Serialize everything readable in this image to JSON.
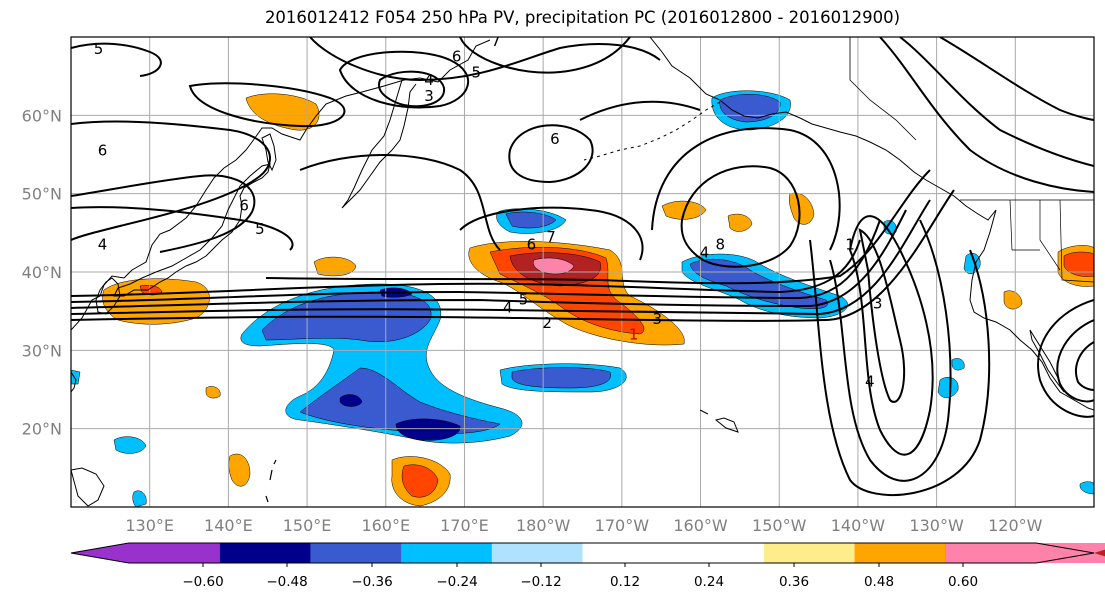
{
  "title": "2016012412 F054 250 hPa PV, precipitation PC (2016012800 - 2016012900)",
  "map": {
    "lon_range": [
      120,
      250
    ],
    "lat_range": [
      10,
      70
    ],
    "lat_ticks": [
      {
        "lat": 60,
        "label": "60°N"
      },
      {
        "lat": 50,
        "label": "50°N"
      },
      {
        "lat": 40,
        "label": "40°N"
      },
      {
        "lat": 30,
        "label": "30°N"
      },
      {
        "lat": 20,
        "label": "20°N"
      }
    ],
    "lon_ticks": [
      {
        "lon": 130,
        "label": "130°E"
      },
      {
        "lon": 140,
        "label": "140°E"
      },
      {
        "lon": 150,
        "label": "150°E"
      },
      {
        "lon": 160,
        "label": "160°E"
      },
      {
        "lon": 170,
        "label": "170°E"
      },
      {
        "lon": 180,
        "label": "180°W"
      },
      {
        "lon": 190,
        "label": "170°W"
      },
      {
        "lon": 200,
        "label": "160°W"
      },
      {
        "lon": 210,
        "label": "150°W"
      },
      {
        "lon": 220,
        "label": "140°W"
      },
      {
        "lon": 230,
        "label": "130°W"
      },
      {
        "lon": 240,
        "label": "120°W"
      }
    ],
    "grid": true,
    "pv_contour_labels": [
      {
        "text": "5",
        "lon": 123.5,
        "lat": 68.5
      },
      {
        "text": "6",
        "lon": 169,
        "lat": 67.5
      },
      {
        "text": "5",
        "lon": 171.5,
        "lat": 65.5
      },
      {
        "text": "7",
        "lon": 174,
        "lat": 69.5
      },
      {
        "text": "4",
        "lon": 165.5,
        "lat": 64.5
      },
      {
        "text": "3",
        "lon": 165.5,
        "lat": 62.5
      },
      {
        "text": "6",
        "lon": 124,
        "lat": 55.5
      },
      {
        "text": "6",
        "lon": 181.5,
        "lat": 57
      },
      {
        "text": "6",
        "lon": 142,
        "lat": 48.5
      },
      {
        "text": "5",
        "lon": 144,
        "lat": 45.5
      },
      {
        "text": "4",
        "lon": 124,
        "lat": 43.5
      },
      {
        "text": "6",
        "lon": 178.5,
        "lat": 43.5
      },
      {
        "text": "7",
        "lon": 181,
        "lat": 44.5
      },
      {
        "text": "4",
        "lon": 200.5,
        "lat": 42.5
      },
      {
        "text": "8",
        "lon": 202.5,
        "lat": 43.5
      },
      {
        "text": "1",
        "lon": 219,
        "lat": 43.5
      },
      {
        "text": "5",
        "lon": 177.5,
        "lat": 36.5
      },
      {
        "text": "4",
        "lon": 175.5,
        "lat": 35.5
      },
      {
        "text": "2",
        "lon": 180.5,
        "lat": 33.5
      },
      {
        "text": "3",
        "lon": 194.5,
        "lat": 34
      },
      {
        "text": "1",
        "lon": 191.5,
        "lat": 32
      },
      {
        "text": "3",
        "lon": 222.5,
        "lat": 36
      },
      {
        "text": "4",
        "lon": 221.5,
        "lat": 26
      }
    ],
    "shading_colors": {
      "neg_ext": "#9932cc",
      "neg60": "#00008b",
      "neg48": "#3a5bd0",
      "neg36": "#00bfff",
      "neg24": "#b0e2ff",
      "pos24": "#ffa500",
      "pos36": "#ff4500",
      "pos48": "#b22222",
      "pos60": "#ff82ab",
      "pos12": "#ffec8b"
    }
  },
  "colorbar": {
    "colors": [
      "#9932cc",
      "#00008b",
      "#3a5bd0",
      "#00bfff",
      "#b0e2ff",
      "#ffffff",
      "#ffffff",
      "#ffec8b",
      "#ffa500",
      "#ff4500",
      "#b22222",
      "#ff82ab"
    ],
    "labels": [
      "−0.60",
      "−0.48",
      "−0.36",
      "−0.24",
      "−0.12",
      "0.12",
      "0.24",
      "0.36",
      "0.48",
      "0.60"
    ]
  }
}
